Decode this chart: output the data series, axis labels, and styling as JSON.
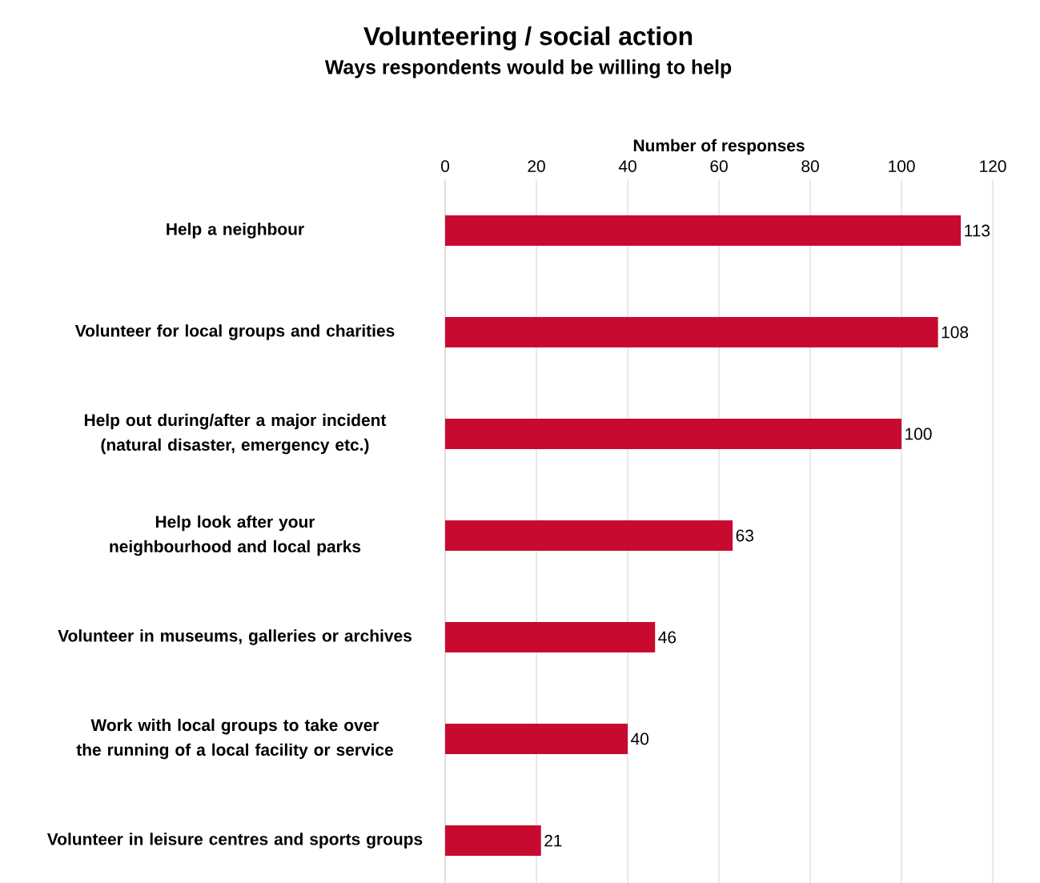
{
  "chart_data": {
    "type": "bar",
    "orientation": "horizontal",
    "title": "Volunteering / social action",
    "subtitle": "Ways respondents would be willing to help",
    "xlabel": "Number of responses",
    "categories": [
      "Help a neighbour",
      "Volunteer for local groups and charities",
      "Help out during/after a major incident (natural disaster, emergency etc.)",
      "Help look after your neighbourhood and local parks",
      "Volunteer in museums, galleries or archives",
      "Work with local groups to take over the running of a local facility or service",
      "Volunteer in leisure centres and sports groups"
    ],
    "values": [
      113,
      108,
      100,
      63,
      46,
      40,
      21
    ],
    "color": "#c80a30",
    "xlim": [
      0,
      120
    ],
    "xticks": [
      0,
      20,
      40,
      60,
      80,
      100,
      120
    ],
    "grid": "x",
    "data_labels": true
  }
}
